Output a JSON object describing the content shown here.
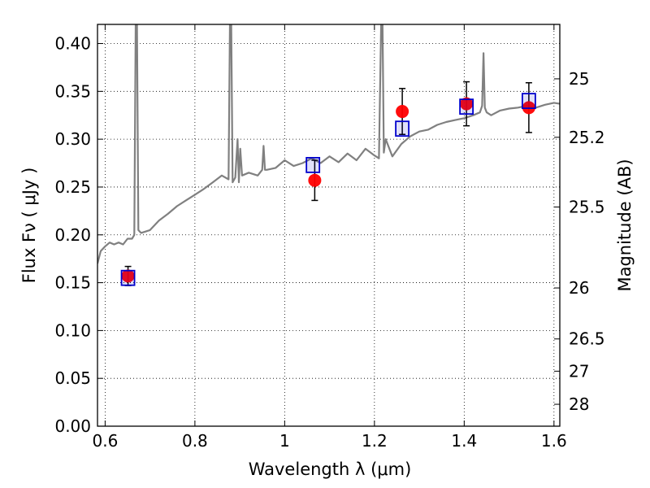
{
  "chart_data": {
    "type": "scatter",
    "xlabel": "Wavelength  λ (μm)",
    "ylabel": "Flux  Fν  ( μJy )",
    "y2label": "Magnitude (AB)",
    "xlim": [
      0.583,
      1.613
    ],
    "ylim": [
      0.0,
      0.42
    ],
    "grid": true,
    "x_ticks": [
      0.6,
      0.8,
      1.0,
      1.2,
      1.4,
      1.6
    ],
    "x_tick_labels": [
      "0.6",
      "0.8",
      "1",
      "1.2",
      "1.4",
      "1.6"
    ],
    "y_ticks": [
      0.0,
      0.05,
      0.1,
      0.15,
      0.2,
      0.25,
      0.3,
      0.35,
      0.4
    ],
    "y_tick_labels": [
      "0.00",
      "0.05",
      "0.10",
      "0.15",
      "0.20",
      "0.25",
      "0.30",
      "0.35",
      "0.40"
    ],
    "y2_ticks": [
      {
        "label": "25",
        "flux": 0.3631
      },
      {
        "label": "25.2",
        "flux": 0.302
      },
      {
        "label": "25.5",
        "flux": 0.2291
      },
      {
        "label": "26",
        "flux": 0.1445
      },
      {
        "label": "26.5",
        "flux": 0.0912
      },
      {
        "label": "27",
        "flux": 0.0575
      },
      {
        "label": "28",
        "flux": 0.0229
      }
    ],
    "series": [
      {
        "kind": "line",
        "color": "#808080",
        "x": [
          0.583,
          0.59,
          0.6,
          0.61,
          0.62,
          0.63,
          0.64,
          0.65,
          0.66,
          0.665,
          0.668,
          0.671,
          0.674,
          0.68,
          0.7,
          0.72,
          0.74,
          0.76,
          0.78,
          0.8,
          0.82,
          0.84,
          0.86,
          0.875,
          0.878,
          0.881,
          0.884,
          0.89,
          0.895,
          0.898,
          0.901,
          0.905,
          0.92,
          0.94,
          0.95,
          0.953,
          0.956,
          0.96,
          0.98,
          1.0,
          1.02,
          1.04,
          1.06,
          1.08,
          1.1,
          1.12,
          1.14,
          1.16,
          1.18,
          1.2,
          1.21,
          1.215,
          1.218,
          1.221,
          1.225,
          1.24,
          1.26,
          1.28,
          1.3,
          1.32,
          1.34,
          1.36,
          1.38,
          1.4,
          1.42,
          1.435,
          1.44,
          1.443,
          1.446,
          1.45,
          1.46,
          1.48,
          1.5,
          1.52,
          1.54,
          1.56,
          1.58,
          1.6,
          1.613
        ],
        "y": [
          0.17,
          0.183,
          0.188,
          0.192,
          0.19,
          0.192,
          0.19,
          0.196,
          0.196,
          0.2,
          0.42,
          0.42,
          0.205,
          0.202,
          0.205,
          0.215,
          0.222,
          0.23,
          0.236,
          0.242,
          0.248,
          0.255,
          0.262,
          0.258,
          0.42,
          0.42,
          0.255,
          0.26,
          0.3,
          0.255,
          0.29,
          0.262,
          0.265,
          0.262,
          0.268,
          0.293,
          0.268,
          0.268,
          0.27,
          0.278,
          0.272,
          0.275,
          0.28,
          0.275,
          0.282,
          0.276,
          0.285,
          0.278,
          0.29,
          0.283,
          0.28,
          0.42,
          0.42,
          0.286,
          0.3,
          0.282,
          0.295,
          0.303,
          0.308,
          0.31,
          0.315,
          0.318,
          0.32,
          0.322,
          0.325,
          0.328,
          0.335,
          0.39,
          0.333,
          0.328,
          0.325,
          0.33,
          0.332,
          0.333,
          0.335,
          0.333,
          0.336,
          0.338,
          0.337
        ]
      },
      {
        "kind": "squares",
        "color": "#0000cc",
        "x": [
          0.651,
          1.063,
          1.262,
          1.405,
          1.544
        ],
        "y": [
          0.155,
          0.273,
          0.311,
          0.334,
          0.34
        ]
      },
      {
        "kind": "errorbar",
        "color": "#ff0000",
        "x": [
          0.651,
          1.067,
          1.262,
          1.405,
          1.544
        ],
        "y": [
          0.157,
          0.257,
          0.329,
          0.337,
          0.333
        ],
        "yerr": [
          0.01,
          0.021,
          0.024,
          0.023,
          0.026
        ]
      }
    ]
  }
}
